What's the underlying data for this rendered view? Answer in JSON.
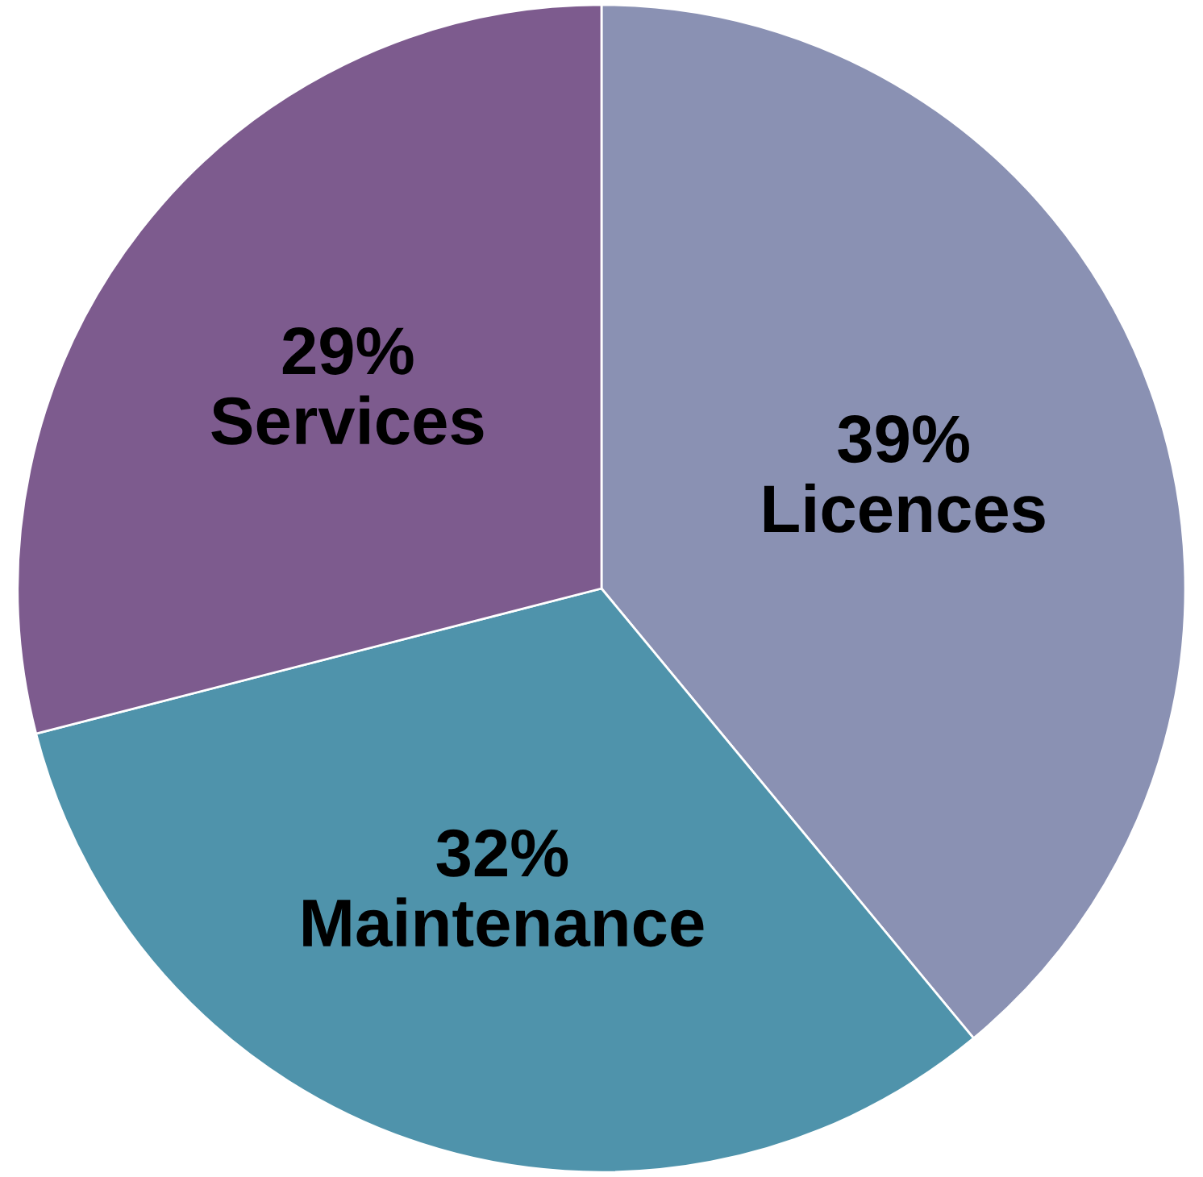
{
  "chart_data": {
    "type": "pie",
    "categories": [
      "Licences",
      "Maintenance",
      "Services"
    ],
    "values": [
      39,
      32,
      29
    ],
    "colors": [
      "#8a91b3",
      "#4f93ab",
      "#7d5b8e"
    ],
    "value_labels": [
      "39%",
      "32%",
      "29%"
    ],
    "legend": false
  }
}
